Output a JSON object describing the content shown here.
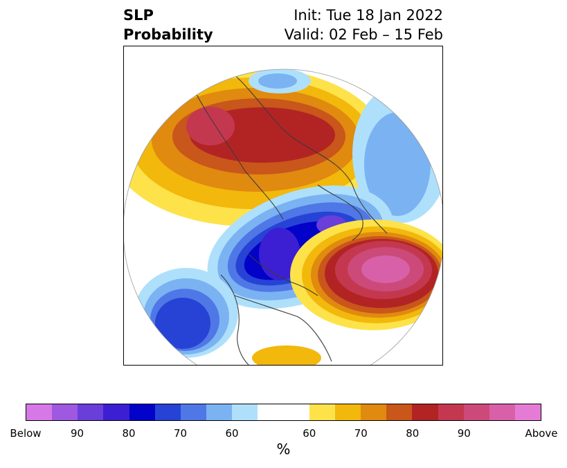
{
  "title": {
    "variable": "SLP",
    "product": "Probability",
    "init": "Init: Tue 18 Jan 2022",
    "valid": "Valid: 02 Feb – 15 Feb"
  },
  "colorbar": {
    "colors": [
      "#d678e6",
      "#9f58e0",
      "#6a3ed9",
      "#3c1fd2",
      "#0202c8",
      "#2643d6",
      "#4f77e6",
      "#7bb2f2",
      "#aee0fc",
      "#ffffff",
      "#ffffff",
      "#fee24a",
      "#f2b80c",
      "#e08a10",
      "#c9561a",
      "#b22424",
      "#c4384f",
      "#cc4a79",
      "#d860a8",
      "#e67bd6"
    ],
    "tick_labels": [
      "Below",
      "90",
      "80",
      "70",
      "60",
      "60",
      "70",
      "80",
      "90",
      "Above"
    ],
    "unit": "%"
  },
  "map": {
    "projection": "north-polar-stereographic",
    "features": [
      "Above-normal SLP probability over Eurasia and Russia",
      "Below-normal SLP probability centered over the Arctic / Canadian archipelago",
      "Above-normal SLP probability over the North Pacific / Aleutians",
      "Below-normal SLP probability over the North Atlantic"
    ]
  }
}
